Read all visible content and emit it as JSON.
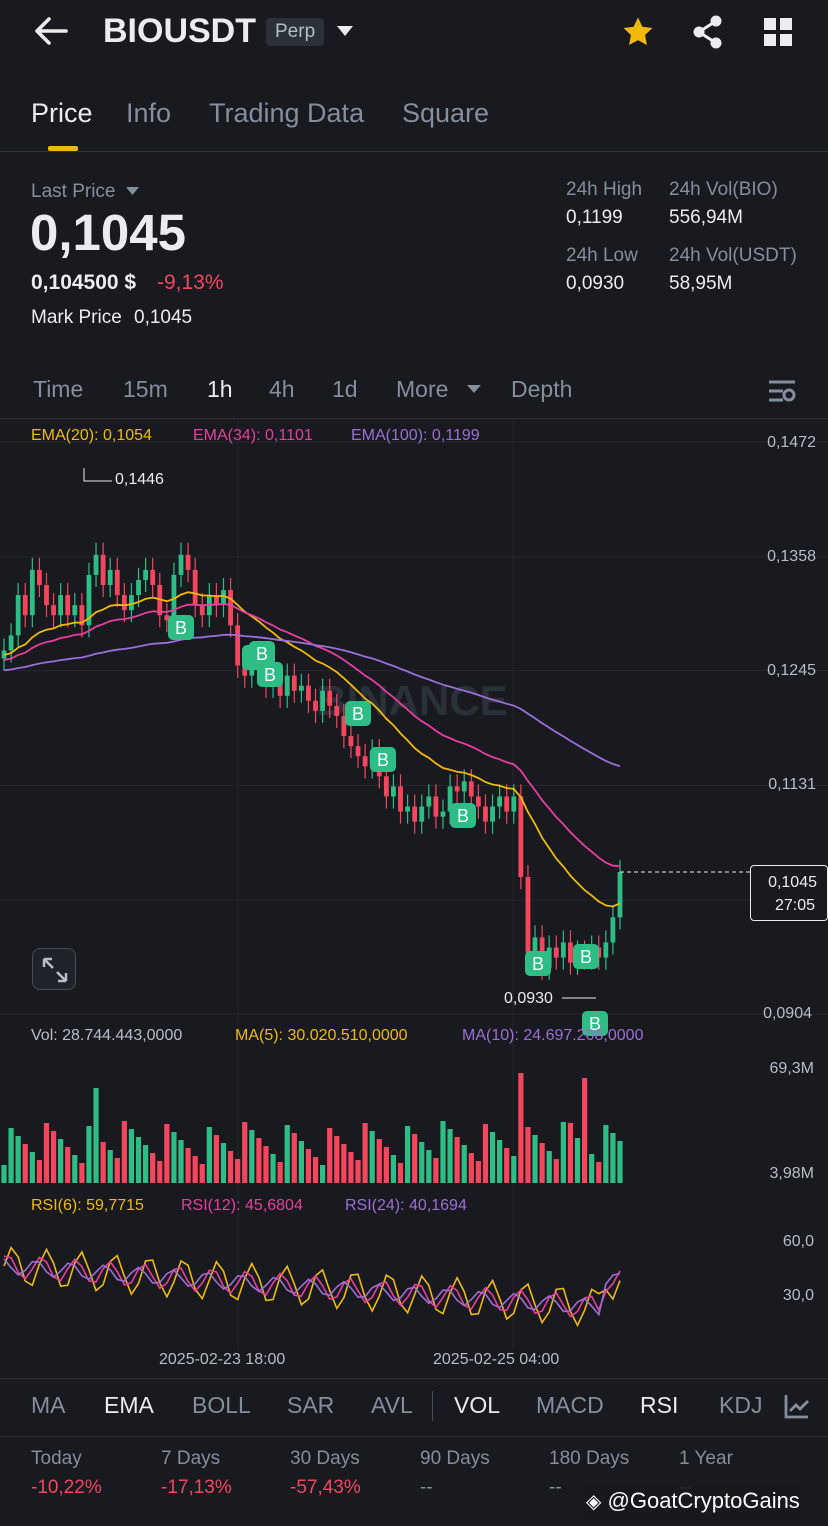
{
  "header": {
    "symbol": "BIOUSDT",
    "badge": "Perp",
    "icons": [
      "back-arrow-icon",
      "caret-down-icon",
      "star-icon",
      "share-icon",
      "grid-icon"
    ]
  },
  "tabs": [
    {
      "label": "Price",
      "active": true
    },
    {
      "label": "Info"
    },
    {
      "label": "Trading Data"
    },
    {
      "label": "Square"
    }
  ],
  "price": {
    "last_label": "Last Price",
    "last": "0,1045",
    "usd": "0,104500 $",
    "change": "-9,13%",
    "mark_label": "Mark Price",
    "mark": "0,1045"
  },
  "stats": {
    "high_label": "24h High",
    "high": "0,1199",
    "low_label": "24h Low",
    "low": "0,0930",
    "vol_bio_label": "24h Vol(BIO)",
    "vol_bio": "556,94M",
    "vol_usdt_label": "24h Vol(USDT)",
    "vol_usdt": "58,95M"
  },
  "timeframes": {
    "items": [
      "Time",
      "15m",
      "1h",
      "4h",
      "1d",
      "More"
    ],
    "active": "1h",
    "depth": "Depth"
  },
  "indicators": {
    "ema20": "EMA(20): 0,1054",
    "ema34": "EMA(34): 0,1101",
    "ema100": "EMA(100): 0,1199",
    "vol": "Vol: 28.744.443,0000",
    "ma5": "MA(5): 30.020.510,0000",
    "ma10": "MA(10): 24.697.208,0000",
    "rsi6": "RSI(6): 59,7715",
    "rsi12": "RSI(12): 45,6804",
    "rsi24": "RSI(24): 40,1694"
  },
  "colors": {
    "up": "#2ebd85",
    "down": "#f6465d",
    "ema20": "#f0b90b",
    "ema34": "#e83e9e",
    "ema100": "#9b6fd6",
    "accent": "#f0b90b"
  },
  "chart_data": {
    "type": "candlestick",
    "interval": "1h",
    "price_axis_ticks": [
      "0,1472",
      "0,1358",
      "0,1245",
      "0,1131",
      "0,0904"
    ],
    "current_price_tag": "0,1045",
    "countdown": "27:05",
    "high_marker": "0,1446",
    "low_marker": "0,0930",
    "volume_axis_ticks": [
      "69,3M",
      "3,98M"
    ],
    "rsi_axis_ticks": [
      "60,0",
      "30,0"
    ],
    "x_ticks": [
      "2025-02-23 18:00",
      "2025-02-25 04:00"
    ],
    "buy_marker_label": "B",
    "ylim": [
      0.0904,
      0.1472
    ]
  },
  "bottom_tabs": {
    "items": [
      "MA",
      "EMA",
      "BOLL",
      "SAR",
      "AVL",
      "VOL",
      "MACD",
      "RSI",
      "KDJ"
    ],
    "active": [
      "EMA",
      "VOL",
      "RSI"
    ]
  },
  "performance": [
    {
      "label": "Today",
      "value": "-10,22%"
    },
    {
      "label": "7 Days",
      "value": "-17,13%"
    },
    {
      "label": "30 Days",
      "value": "-57,43%"
    },
    {
      "label": "90 Days",
      "value": "--"
    },
    {
      "label": "180 Days",
      "value": "--"
    },
    {
      "label": "1 Year",
      "value": "--"
    }
  ],
  "watermark": {
    "chart": "BINANCE",
    "handle": "@GoatCryptoGains"
  }
}
